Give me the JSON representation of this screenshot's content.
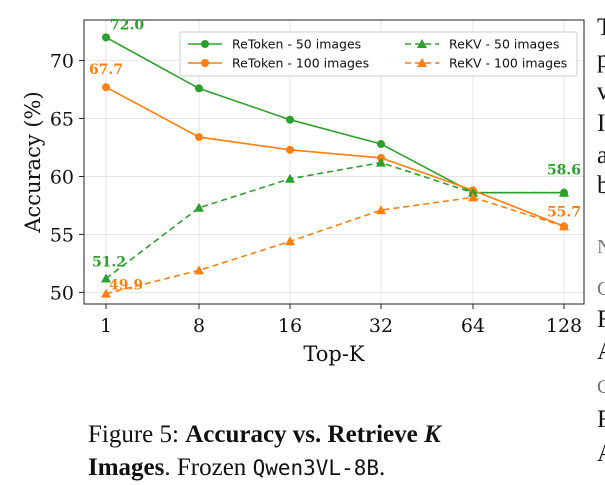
{
  "chart_data": {
    "type": "line",
    "title": "",
    "xlabel": "Top-K",
    "ylabel": "Accuracy (%)",
    "x": [
      "1",
      "8",
      "16",
      "32",
      "64",
      "128"
    ],
    "ylim": [
      49,
      73.5
    ],
    "yticks": [
      "50",
      "55",
      "60",
      "65",
      "70"
    ],
    "grid": true,
    "legend_position": "top-right",
    "series": [
      {
        "name": "ReToken - 50 images",
        "color": "#2ca02c",
        "dash": "solid",
        "marker": "circle",
        "values": [
          72.0,
          67.6,
          64.9,
          62.8,
          58.6,
          58.6
        ]
      },
      {
        "name": "ReToken - 100 images",
        "color": "#ff7f0e",
        "dash": "solid",
        "marker": "circle",
        "values": [
          67.7,
          63.4,
          62.3,
          61.6,
          58.8,
          55.7
        ]
      },
      {
        "name": "ReKV - 50 images",
        "color": "#2ca02c",
        "dash": "dashed",
        "marker": "triangle",
        "values": [
          51.2,
          57.3,
          59.8,
          61.2,
          58.6,
          58.6
        ]
      },
      {
        "name": "ReKV - 100 images",
        "color": "#ff7f0e",
        "dash": "dashed",
        "marker": "triangle",
        "values": [
          49.9,
          51.9,
          54.4,
          57.1,
          58.2,
          55.7
        ]
      }
    ],
    "annotations": [
      {
        "text": "72.0",
        "series": 0,
        "index": 0,
        "color": "#2ca02c"
      },
      {
        "text": "67.7",
        "series": 1,
        "index": 0,
        "color": "#ff7f0e"
      },
      {
        "text": "51.2",
        "series": 2,
        "index": 0,
        "color": "#2ca02c"
      },
      {
        "text": "49.9",
        "series": 3,
        "index": 0,
        "color": "#ff7f0e"
      },
      {
        "text": "58.6",
        "series": 0,
        "index": 5,
        "color": "#2ca02c"
      },
      {
        "text": "55.7",
        "series": 1,
        "index": 5,
        "color": "#ff7f0e"
      }
    ]
  },
  "caption": {
    "prefix": "Figure 5: ",
    "bold": "Accuracy vs. Retrieve ",
    "italic": "K",
    "bold2": "Images",
    "rest": ". Frozen ",
    "mono": "Qwen3VL-8B",
    "end": "."
  },
  "side_fragments": [
    "T",
    "p",
    "v",
    "I",
    "a",
    "b",
    "N",
    "C",
    "F",
    "A",
    "C",
    "F",
    "A"
  ]
}
